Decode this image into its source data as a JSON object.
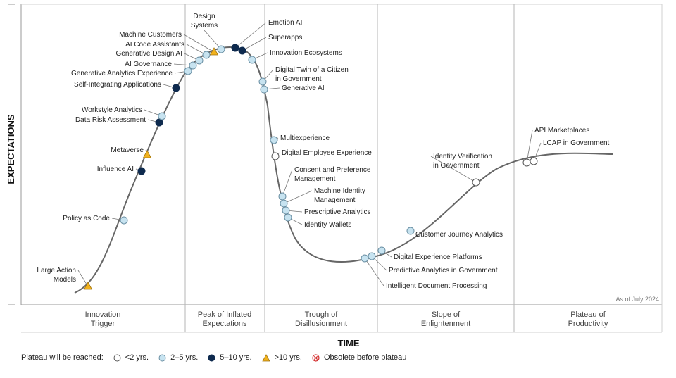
{
  "chart_data": {
    "type": "hype-cycle",
    "x_axis_title": "TIME",
    "y_axis_title": "EXPECTATIONS",
    "note": "As of July 2024",
    "phases": [
      "Innovation\nTrigger",
      "Peak of Inflated\nExpectations",
      "Trough of\nDisillusionment",
      "Slope of\nEnlightenment",
      "Plateau of\nProductivity"
    ],
    "legend": {
      "title": "Plateau will be reached:",
      "items": [
        {
          "key": "lt2",
          "label": "<2 yrs."
        },
        {
          "key": "2to5",
          "label": "2–5 yrs."
        },
        {
          "key": "5to10",
          "label": "5–10 yrs."
        },
        {
          "key": "gt10",
          "label": ">10 yrs."
        },
        {
          "key": "obsolete",
          "label": "Obsolete before plateau"
        }
      ]
    },
    "colors": {
      "lt2": "#ffffff",
      "2to5": "#c7e3f0",
      "5to10": "#0e2a4e",
      "gt10": "#f2b21d",
      "obsolete": "#d32f2f",
      "curve": "#666666",
      "divider": "#b5b5b5"
    },
    "technologies": [
      {
        "name": "Large Action\nModels",
        "category": "gt10"
      },
      {
        "name": "Policy as Code",
        "category": "2to5"
      },
      {
        "name": "Influence AI",
        "category": "5to10"
      },
      {
        "name": "Metaverse",
        "category": "gt10"
      },
      {
        "name": "Data Risk Assessment",
        "category": "5to10"
      },
      {
        "name": "Workstyle Analytics",
        "category": "2to5"
      },
      {
        "name": "Self-Integrating Applications",
        "category": "5to10"
      },
      {
        "name": "Generative Analytics Experience",
        "category": "2to5"
      },
      {
        "name": "AI Governance",
        "category": "2to5"
      },
      {
        "name": "Generative Design AI",
        "category": "2to5"
      },
      {
        "name": "AI Code Assistants",
        "category": "2to5"
      },
      {
        "name": "Machine Customers",
        "category": "gt10"
      },
      {
        "name": "Design\nSystems",
        "category": "2to5"
      },
      {
        "name": "Emotion AI",
        "category": "5to10"
      },
      {
        "name": "Superapps",
        "category": "5to10"
      },
      {
        "name": "Innovation Ecosystems",
        "category": "2to5"
      },
      {
        "name": "Digital Twin of a Citizen\nin Government",
        "category": "2to5"
      },
      {
        "name": "Generative AI",
        "category": "2to5"
      },
      {
        "name": "Multiexperience",
        "category": "2to5"
      },
      {
        "name": "Digital Employee Experience",
        "category": "lt2"
      },
      {
        "name": "Consent and Preference\nManagement",
        "category": "2to5"
      },
      {
        "name": "Machine Identity\nManagement",
        "category": "2to5"
      },
      {
        "name": "Prescriptive Analytics",
        "category": "2to5"
      },
      {
        "name": "Identity Wallets",
        "category": "2to5"
      },
      {
        "name": "Intelligent Document Processing",
        "category": "2to5"
      },
      {
        "name": "Predictive Analytics in Government",
        "category": "2to5"
      },
      {
        "name": "Digital Experience Platforms",
        "category": "2to5"
      },
      {
        "name": "Customer Journey Analytics",
        "category": "2to5"
      },
      {
        "name": "Identity Verification\nin Government",
        "category": "lt2"
      },
      {
        "name": "API Marketplaces",
        "category": "lt2"
      },
      {
        "name": "LCAP in Government",
        "category": "lt2"
      }
    ]
  }
}
